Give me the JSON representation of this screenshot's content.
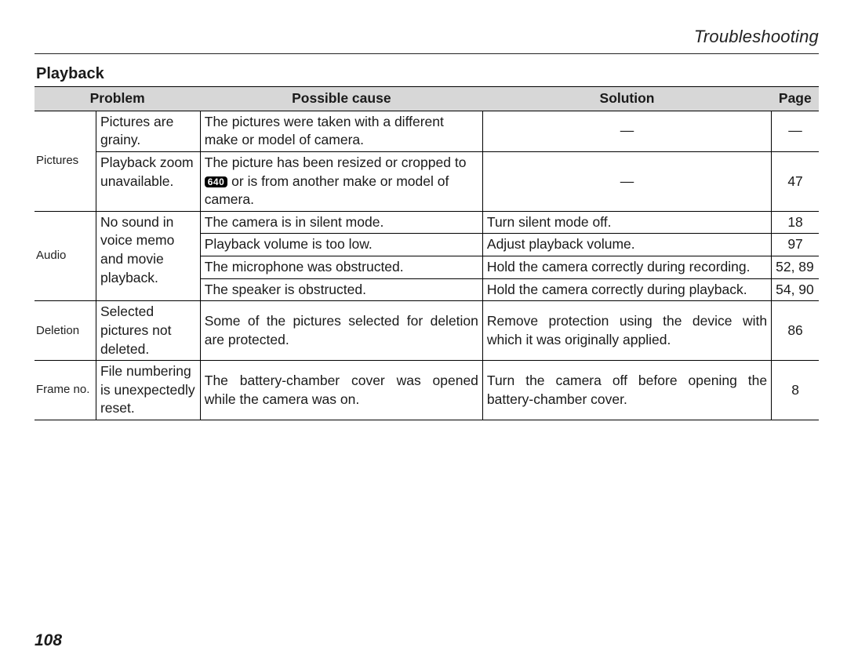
{
  "runningHead": "Troubleshooting",
  "sectionTitle": "Playback",
  "pageNumber": "108",
  "headers": {
    "problem": "Problem",
    "cause": "Possible cause",
    "solution": "Solution",
    "page": "Page"
  },
  "badge640": "640",
  "groups": {
    "pictures": {
      "category": "Pictures",
      "r1": {
        "problem": "Pictures are grainy.",
        "cause": "The pictures were taken with a different make or model of camera.",
        "solution": "—",
        "page": "—"
      },
      "r2": {
        "problem": "Playback zoom unavailable.",
        "cause_pre": "The picture has been resized or cropped to ",
        "cause_post": " or is from another make or model of camera.",
        "solution": "—",
        "page": "47"
      }
    },
    "audio": {
      "category": "Audio",
      "problem": "No sound in voice memo and movie playback.",
      "r1": {
        "cause": "The camera is in silent mode.",
        "solution": "Turn silent mode off.",
        "page": "18"
      },
      "r2": {
        "cause": "Playback volume is too low.",
        "solution": "Adjust playback volume.",
        "page": "97"
      },
      "r3": {
        "cause": "The microphone was obstructed.",
        "solution": "Hold the camera correctly during recording.",
        "page": "52, 89"
      },
      "r4": {
        "cause": "The speaker is obstructed.",
        "solution": "Hold the camera correctly during playback.",
        "page": "54, 90"
      }
    },
    "deletion": {
      "category": "Deletion",
      "problem": "Selected pictures not deleted.",
      "cause": "Some of the pictures selected for deletion are protected.",
      "solution": "Remove protection using the device with which it was originally applied.",
      "page": "86"
    },
    "frameno": {
      "category": "Frame no.",
      "problem": "File numbering is unexpectedly reset.",
      "cause": "The battery-chamber cover was opened while the camera was on.",
      "solution": "Turn the camera off before opening the battery-chamber cover.",
      "page": "8"
    }
  }
}
